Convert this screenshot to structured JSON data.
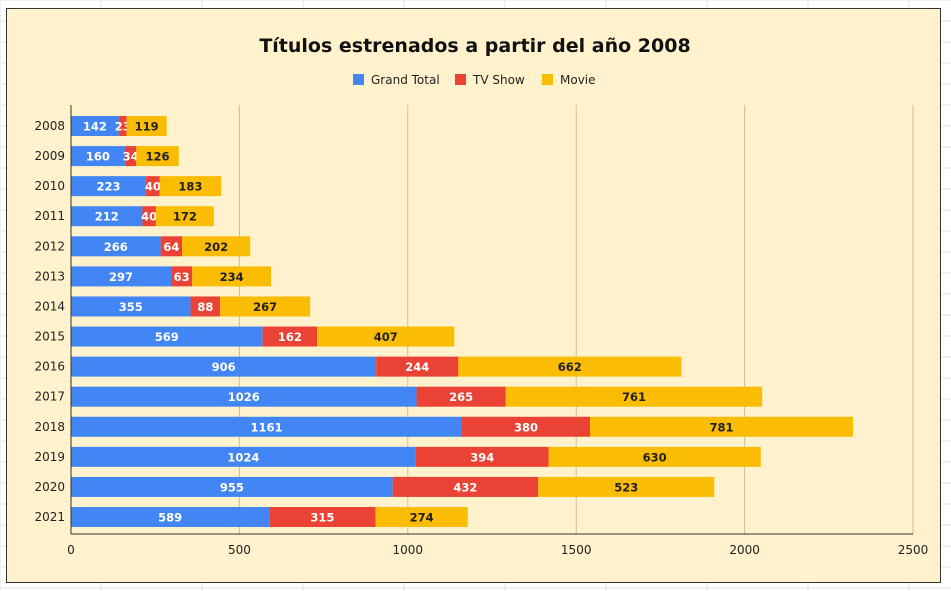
{
  "chart_data": {
    "type": "bar",
    "orientation": "horizontal",
    "stacked": true,
    "title": "Títulos estrenados a partir del año 2008",
    "xlabel": "",
    "ylabel": "",
    "categories": [
      "2008",
      "2009",
      "2010",
      "2011",
      "2012",
      "2013",
      "2014",
      "2015",
      "2016",
      "2017",
      "2018",
      "2019",
      "2020",
      "2021"
    ],
    "series": [
      {
        "name": "Grand Total",
        "color": "#4285F4",
        "label_color": "#FFFFFF",
        "values": [
          142,
          160,
          223,
          212,
          266,
          297,
          355,
          569,
          906,
          1026,
          1161,
          1024,
          955,
          589
        ]
      },
      {
        "name": "TV Show",
        "color": "#EA4335",
        "label_color": "#FFFFFF",
        "values": [
          23,
          34,
          40,
          40,
          64,
          63,
          88,
          162,
          244,
          265,
          380,
          394,
          432,
          315
        ]
      },
      {
        "name": "Movie",
        "color": "#FBBC04",
        "label_color": "#222222",
        "values": [
          119,
          126,
          183,
          172,
          202,
          234,
          267,
          407,
          662,
          761,
          781,
          630,
          523,
          274
        ]
      }
    ],
    "xlim": [
      0,
      2500
    ],
    "xticks": [
      0,
      500,
      1000,
      1500,
      2000,
      2500
    ],
    "grid": true,
    "legend_position": "top",
    "background": "#FFF2CC"
  }
}
